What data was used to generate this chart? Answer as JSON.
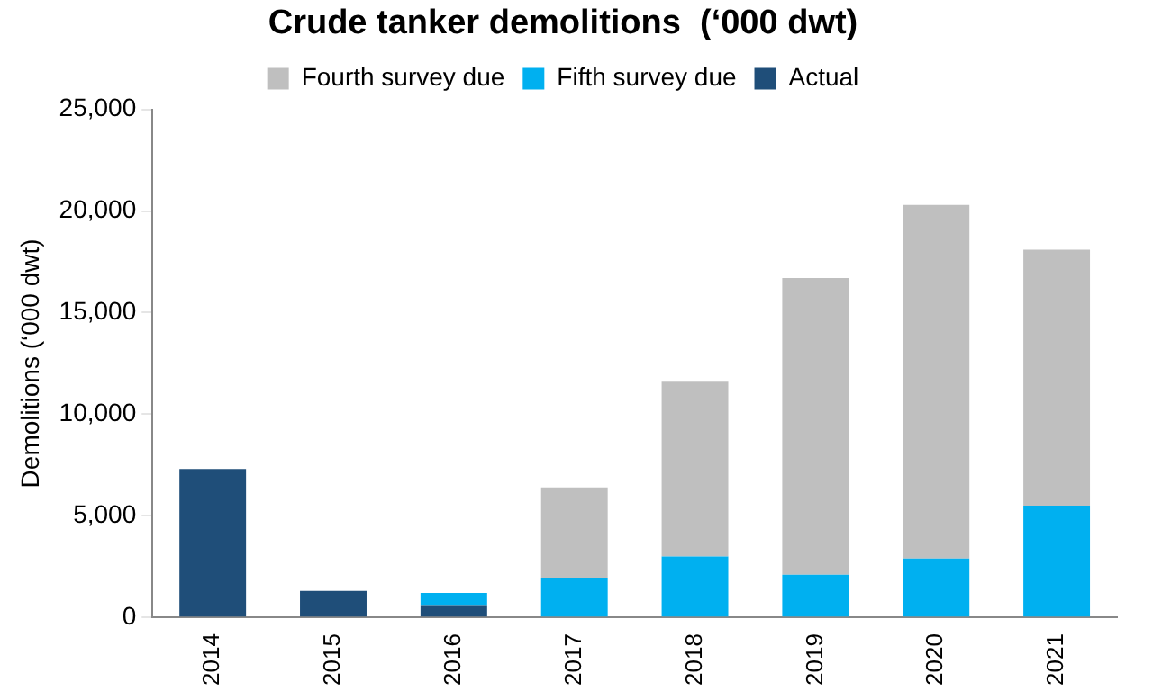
{
  "chart_data": {
    "type": "bar",
    "title": "Crude tanker demolitions  (‘000 dwt)",
    "ylabel": "Demolitions (‘000 dwt)",
    "categories": [
      "2014",
      "2015",
      "2016",
      "2017",
      "2018",
      "2019",
      "2020",
      "2021"
    ],
    "series": [
      {
        "name": "Actual",
        "color": "#1f4e79",
        "values": [
          7300,
          1300,
          600,
          null,
          null,
          null,
          null,
          null
        ]
      },
      {
        "name": "Fifth survey due",
        "color": "#00b0f0",
        "values": [
          null,
          null,
          600,
          1950,
          3000,
          2100,
          2900,
          5500
        ]
      },
      {
        "name": "Fourth survey due",
        "color": "#bfbfbf",
        "values": [
          null,
          null,
          null,
          4450,
          8600,
          14600,
          17400,
          12600
        ]
      }
    ],
    "stacked": true,
    "ylim": [
      0,
      25000
    ],
    "yticks": [
      0,
      {
        "value": 5000,
        "label": "5,000"
      },
      {
        "value": 10000,
        "label": "10,000"
      },
      {
        "value": 15000,
        "label": "15,000"
      },
      {
        "value": 20000,
        "label": "20,000"
      },
      {
        "value": 25000,
        "label": "25,000"
      }
    ],
    "grid": false,
    "legend": "top"
  }
}
